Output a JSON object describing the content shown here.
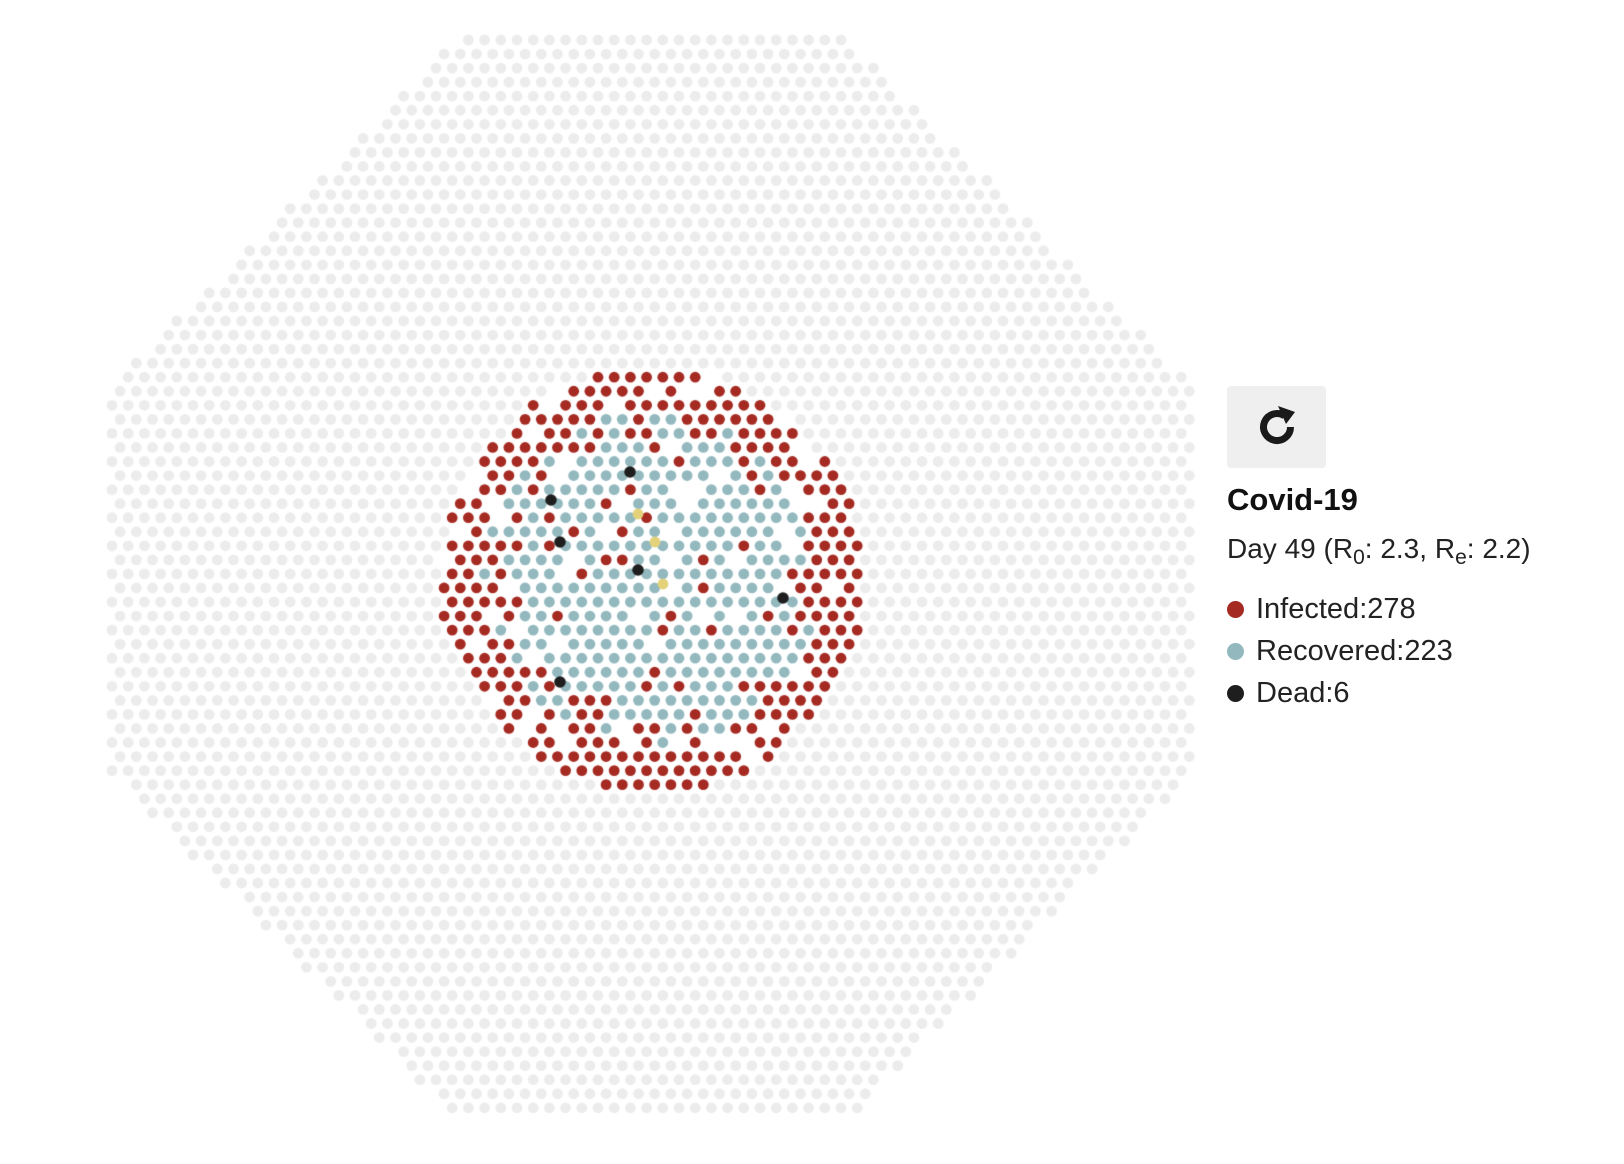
{
  "simulation": {
    "title": "Covid-19",
    "day_prefix": "Day ",
    "day": "49",
    "r0_label": "R",
    "r0_sub": "0",
    "r0_value": "2.3",
    "re_label": "R",
    "re_sub": "e",
    "re_value": "2.2",
    "reset_icon": "refresh-icon"
  },
  "legend": {
    "infected": {
      "label": "Infected",
      "count": "278"
    },
    "recovered": {
      "label": "Recovered",
      "count": "223"
    },
    "dead": {
      "label": "Dead",
      "count": "6"
    }
  },
  "colors": {
    "susceptible": "#ececec",
    "infected": "#a52a22",
    "recovered": "#93b9bf",
    "dead": "#1e1e1e",
    "exposed": "#e3d27a",
    "button_bg": "#efefef"
  }
}
